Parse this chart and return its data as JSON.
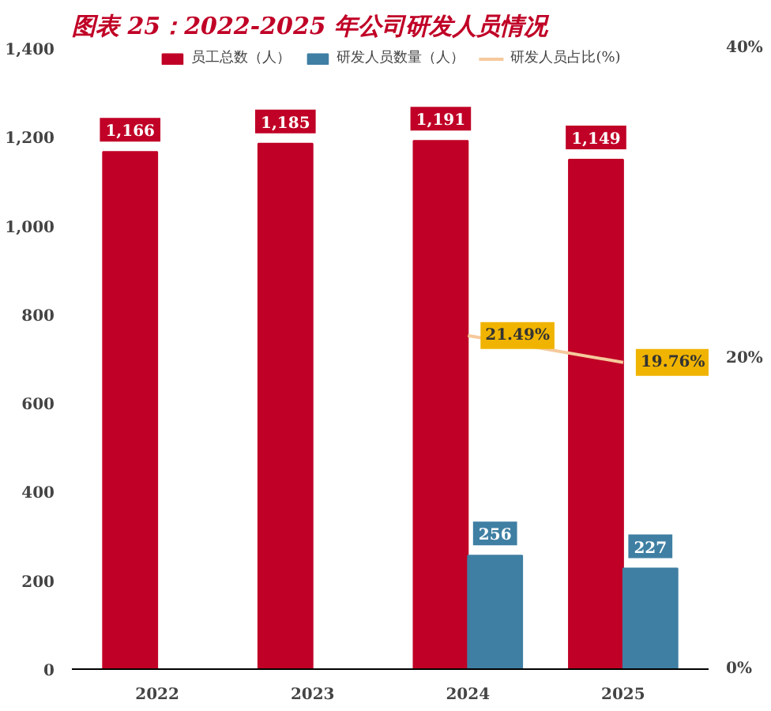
{
  "chart_data": {
    "type": "bar",
    "title": "图表 25：2022-2025 年公司研发人员情况",
    "categories": [
      "2022",
      "2023",
      "2024",
      "2025"
    ],
    "series": [
      {
        "name": "员工总数（人）",
        "color": "#c00026",
        "values": [
          1166,
          1185,
          1191,
          1149
        ],
        "value_labels": [
          "1,166",
          "1,185",
          "1,191",
          "1,149"
        ]
      },
      {
        "name": "研发人员数量（人）",
        "color": "#3f7fa3",
        "values": [
          null,
          null,
          256,
          227
        ],
        "value_labels": [
          null,
          null,
          "256",
          "227"
        ]
      },
      {
        "name": "研发人员占比(%)",
        "type": "line",
        "axis": "y2",
        "color": "#f6c99c",
        "values": [
          null,
          null,
          21.49,
          19.76
        ],
        "value_labels": [
          null,
          null,
          "21.49%",
          "19.76%"
        ]
      }
    ],
    "ylim": [
      0,
      1400
    ],
    "yticks": [
      0,
      {
        "value": 200,
        "label": "200"
      },
      400,
      600,
      800,
      {
        "value": 1000,
        "label": "1,000"
      },
      {
        "value": 1200,
        "label": "1,200"
      },
      {
        "value": 1400,
        "label": "1,400"
      }
    ],
    "y2lim": [
      0,
      40
    ],
    "y2ticks": [
      {
        "value": 0,
        "label": "0%"
      },
      {
        "value": 20,
        "label": "20%"
      },
      {
        "value": 40,
        "label": "40%"
      }
    ],
    "grid": false,
    "legend": "top",
    "marker": "none",
    "line_style": "solid"
  }
}
